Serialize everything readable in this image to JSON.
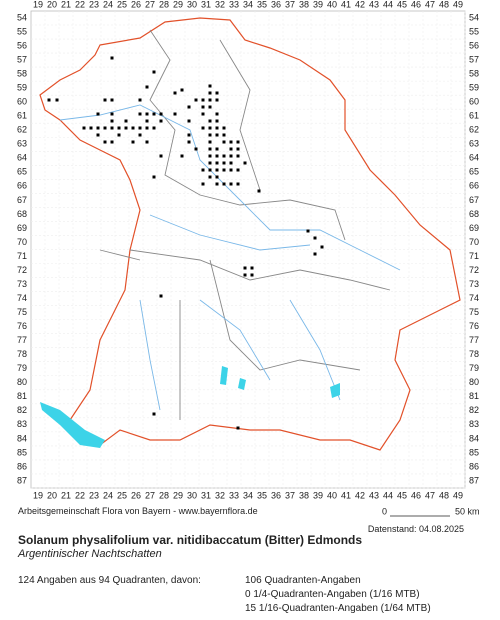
{
  "map": {
    "columns": [
      19,
      20,
      21,
      22,
      23,
      24,
      25,
      26,
      27,
      28,
      29,
      30,
      31,
      32,
      33,
      34,
      35,
      36,
      37,
      38,
      39,
      40,
      41,
      42,
      43,
      44,
      45,
      46,
      47,
      48,
      49
    ],
    "rows": [
      54,
      55,
      56,
      57,
      58,
      59,
      60,
      61,
      62,
      63,
      64,
      65,
      66,
      67,
      68,
      69,
      70,
      71,
      72,
      73,
      74,
      75,
      76,
      77,
      78,
      79,
      80,
      81,
      82,
      83,
      84,
      85,
      86,
      87
    ],
    "scale": {
      "start": "0",
      "end": "50 km"
    }
  },
  "footer": {
    "credit": "Arbeitsgemeinschaft Flora von Bayern - www.bayernflora.de",
    "date": "Datenstand: 04.08.2025"
  },
  "species": {
    "name": "Solanum physalifolium var. nitidibaccatum (Bitter) Edmonds",
    "common": "Argentinischer Nachtschatten"
  },
  "stats": {
    "summary": "124 Angaben aus 94 Quadranten, davon:",
    "lines": [
      "106 Quadranten-Angaben",
      "0 1/4-Quadranten-Angaben (1/16 MTB)",
      "15 1/16-Quadranten-Angaben (1/64 MTB)"
    ]
  }
}
